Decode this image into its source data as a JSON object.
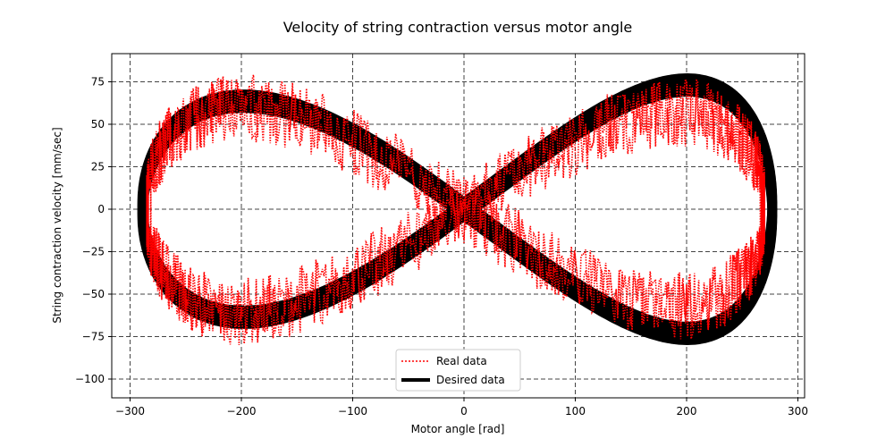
{
  "chart_data": {
    "type": "line",
    "title": "Velocity of string contraction versus motor angle",
    "xlabel": "Motor angle [rad]",
    "ylabel": "String contraction velocity [mm/sec]",
    "xlim": [
      -300,
      300
    ],
    "ylim": [
      -100,
      75
    ],
    "xticks": [
      -300,
      -200,
      -100,
      0,
      100,
      200,
      300
    ],
    "yticks": [
      -100,
      -75,
      -50,
      -25,
      0,
      25,
      50,
      75
    ],
    "xtick_labels": [
      "−300",
      "−200",
      "−100",
      "0",
      "100",
      "200",
      "300"
    ],
    "ytick_labels": [
      "−100",
      "−75",
      "−50",
      "−25",
      "0",
      "25",
      "50",
      "75"
    ],
    "grid": true,
    "legend_position": "lower-center",
    "series": [
      {
        "name": "Real data",
        "style": "dotted",
        "color": "#ff0000",
        "description_values": {
          "x_range": [
            -290,
            275
          ],
          "y_range": [
            -101,
            82
          ],
          "left_lobe_peak": [
            -210,
            60
          ],
          "right_lobe_peak": [
            210,
            60
          ],
          "crossing": [
            0,
            0
          ]
        }
      },
      {
        "name": "Desired data",
        "style": "solid",
        "color": "#000000",
        "description_values": {
          "x_range": [
            -290,
            278
          ],
          "y_range": [
            -73,
            75
          ],
          "left_lobe_peak": [
            -228,
            72
          ],
          "right_lobe_peak": [
            215,
            68
          ],
          "crossing": [
            0,
            0
          ]
        }
      }
    ]
  }
}
